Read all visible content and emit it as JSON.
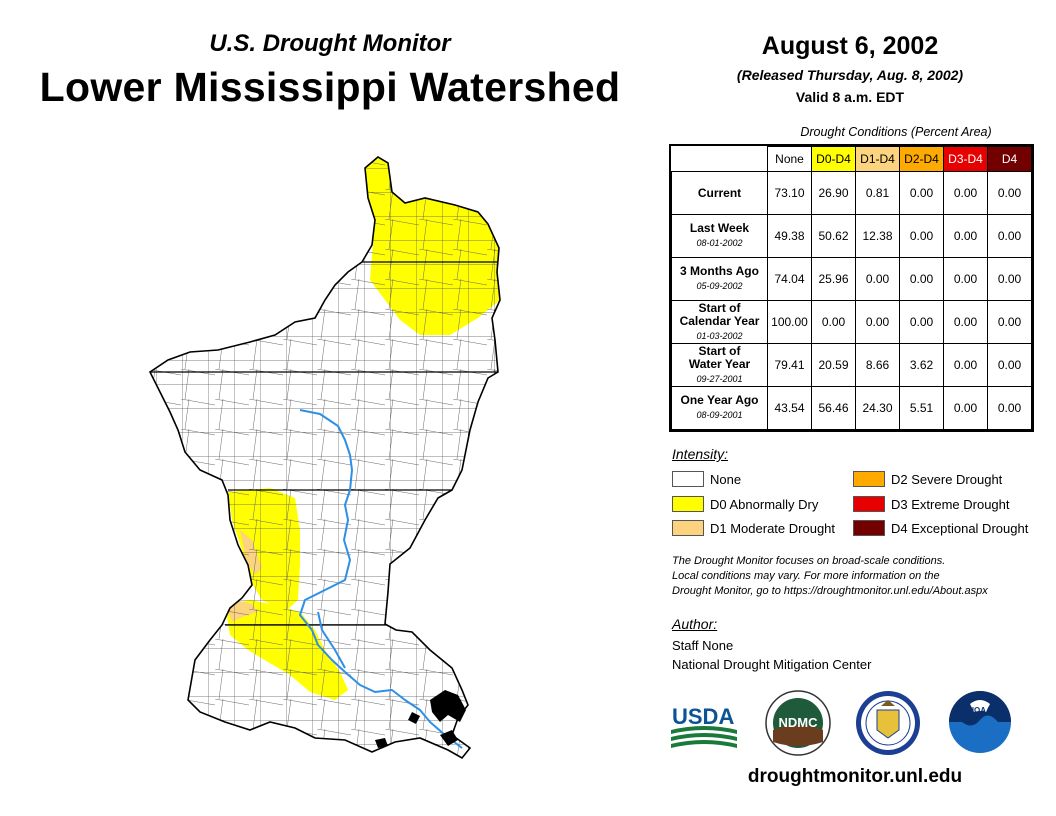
{
  "header": {
    "subtitle": "U.S. Drought Monitor",
    "title": "Lower Mississippi Watershed",
    "date": "August 6, 2002",
    "released": "(Released Thursday, Aug. 8, 2002)",
    "valid": "Valid 8 a.m. EDT"
  },
  "table": {
    "caption": "Drought Conditions (Percent Area)",
    "columns": [
      "None",
      "D0-D4",
      "D1-D4",
      "D2-D4",
      "D3-D4",
      "D4"
    ],
    "column_colors": [
      "#ffffff",
      "#ffff00",
      "#fcd37f",
      "#ffaa00",
      "#e60000",
      "#730000"
    ],
    "rows": [
      {
        "label": "Current",
        "label2": "",
        "date": "",
        "values": [
          "73.10",
          "26.90",
          "0.81",
          "0.00",
          "0.00",
          "0.00"
        ]
      },
      {
        "label": "Last Week",
        "label2": "",
        "date": "08-01-2002",
        "values": [
          "49.38",
          "50.62",
          "12.38",
          "0.00",
          "0.00",
          "0.00"
        ]
      },
      {
        "label": "3 Months Ago",
        "label2": "",
        "date": "05-09-2002",
        "values": [
          "74.04",
          "25.96",
          "0.00",
          "0.00",
          "0.00",
          "0.00"
        ]
      },
      {
        "label": "Start of",
        "label2": "Calendar Year",
        "date": "01-03-2002",
        "values": [
          "100.00",
          "0.00",
          "0.00",
          "0.00",
          "0.00",
          "0.00"
        ]
      },
      {
        "label": "Start of",
        "label2": "Water Year",
        "date": "09-27-2001",
        "values": [
          "79.41",
          "20.59",
          "8.66",
          "3.62",
          "0.00",
          "0.00"
        ]
      },
      {
        "label": "One Year Ago",
        "label2": "",
        "date": "08-09-2001",
        "values": [
          "43.54",
          "56.46",
          "24.30",
          "5.51",
          "0.00",
          "0.00"
        ]
      }
    ]
  },
  "legend": {
    "title": "Intensity:",
    "items": [
      {
        "label": "None",
        "color": "#ffffff"
      },
      {
        "label": "D0 Abnormally Dry",
        "color": "#ffff00"
      },
      {
        "label": "D1 Moderate Drought",
        "color": "#fcd37f"
      },
      {
        "label": "D2 Severe Drought",
        "color": "#ffaa00"
      },
      {
        "label": "D3 Extreme Drought",
        "color": "#e60000"
      },
      {
        "label": "D4 Exceptional Drought",
        "color": "#730000"
      }
    ]
  },
  "note": {
    "line1": "The Drought Monitor focuses on broad-scale conditions.",
    "line2": "Local conditions may vary. For more information on the",
    "line3": "Drought Monitor, go to https://droughtmonitor.unl.edu/About.aspx"
  },
  "author": {
    "title": "Author:",
    "name": "Staff None",
    "org": "National Drought Mitigation Center"
  },
  "logos": {
    "usda": "USDA",
    "ndmc": "NDMC",
    "noaa": "NOAA"
  },
  "footer": {
    "url": "droughtmonitor.unl.edu"
  },
  "map": {
    "d0_color": "#ffff00",
    "d1_color": "#fcd37f",
    "river_color": "#2e8fe6"
  }
}
